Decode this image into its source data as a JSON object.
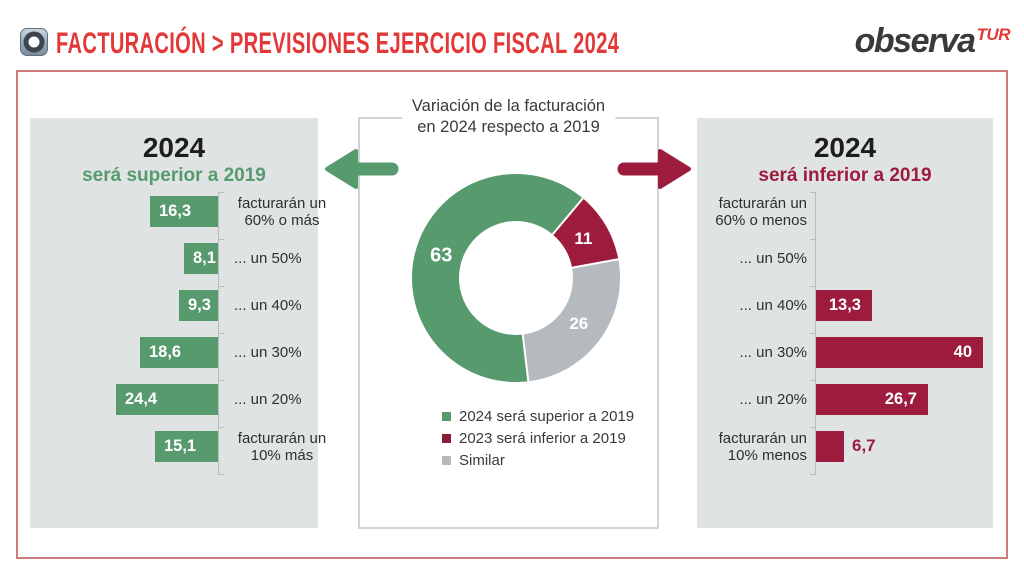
{
  "header": {
    "title": "FACTURACIÓN > PREVISIONES EJERCICIO FISCAL 2024",
    "logo_primary": "observa",
    "logo_suffix": "TUR"
  },
  "center": {
    "title_line1": "Variación de la facturación",
    "title_line2": "en 2024 respecto a 2019"
  },
  "colors": {
    "green": "#569a6e",
    "crimson": "#9d1c3e",
    "legend_crimson": "#8d1c38",
    "gray_slice": "#b5babe",
    "panel_bg": "#dfe3e4",
    "header_red": "#e23837",
    "outer_border": "#c97c7c",
    "logo_dark": "#3a3a3a",
    "text_dark": "#2f2f2f"
  },
  "chart_data": [
    {
      "id": "left_bars",
      "type": "bar",
      "orientation": "horizontal-left",
      "title": "2024",
      "subtitle": "será superior a 2019",
      "color": "#569a6e",
      "categories": [
        [
          "facturarán un",
          "60% o más"
        ],
        "... un 50%",
        "... un 40%",
        "... un 30%",
        "... un 20%",
        [
          "facturarán un",
          "10% más"
        ]
      ],
      "values": [
        16.3,
        8.1,
        9.3,
        18.6,
        24.4,
        15.1
      ],
      "value_labels": [
        "16,3",
        "8,1",
        "9,3",
        "18,6",
        "24,4",
        "15,1"
      ],
      "xlim": [
        0,
        25
      ],
      "grid": false
    },
    {
      "id": "donut",
      "type": "pie",
      "subtype": "donut",
      "title": "Variación de la facturación en 2024 respecto a 2019",
      "start_angle_deg": 40,
      "slices": [
        {
          "label": "2023 será inferior a 2019",
          "value": 11,
          "value_label": "11",
          "color": "#9d1c3e"
        },
        {
          "label": "Similar",
          "value": 26,
          "value_label": "26",
          "color": "#b5babe"
        },
        {
          "label": "2024 será superior a 2019",
          "value": 63,
          "value_label": "63",
          "color": "#569a6e"
        }
      ],
      "legend_position": "bottom",
      "legend": [
        {
          "label": "2024 será superior a 2019",
          "color": "#569a6e"
        },
        {
          "label": "2023 será inferior a 2019",
          "color": "#8d1c38"
        },
        {
          "label": "Similar",
          "color": "#b5babe"
        }
      ]
    },
    {
      "id": "right_bars",
      "type": "bar",
      "orientation": "horizontal-right",
      "title": "2024",
      "subtitle": "será inferior a 2019",
      "color": "#9d1c3e",
      "categories": [
        [
          "facturarán un",
          "60% o menos"
        ],
        "... un 50%",
        "... un 40%",
        "... un 30%",
        "... un 20%",
        [
          "facturarán un",
          "10% menos"
        ]
      ],
      "values": [
        0,
        0,
        13.3,
        40,
        26.7,
        6.7
      ],
      "value_labels": [
        "",
        "",
        "13,3",
        "40",
        "26,7",
        "6,7"
      ],
      "xlim": [
        0,
        42
      ],
      "grid": false
    }
  ]
}
